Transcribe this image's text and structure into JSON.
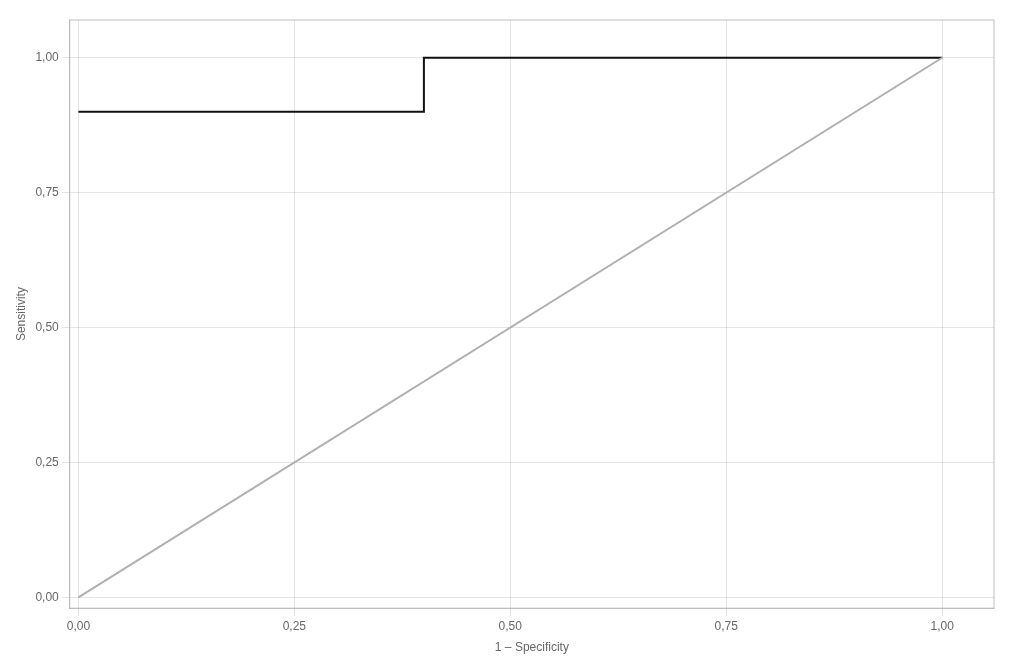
{
  "chart_data": {
    "type": "line",
    "xlabel": "1 – Specificity",
    "ylabel": "Sensitivity",
    "series": [
      {
        "color": "#b0b0b0",
        "x": [
          0.0,
          1.0
        ],
        "values": [
          0.0,
          1.0
        ]
      },
      {
        "color": "#111111",
        "x": [
          0.0,
          0.0,
          0.4,
          0.4,
          1.0
        ],
        "values": [
          0.9,
          0.9,
          0.9,
          1.0,
          1.0
        ]
      }
    ],
    "xlim": [
      -0.01,
      1.06
    ],
    "ylim": [
      -0.02,
      1.07
    ],
    "xticks": [
      {
        "value": 0.0,
        "label": "0,00"
      },
      {
        "value": 0.25,
        "label": "0,25"
      },
      {
        "value": 0.5,
        "label": "0,50"
      },
      {
        "value": 0.75,
        "label": "0,75"
      },
      {
        "value": 1.0,
        "label": "1,00"
      }
    ],
    "yticks": [
      {
        "value": 0.0,
        "label": "0,00"
      },
      {
        "value": 0.25,
        "label": "0,25"
      },
      {
        "value": 0.5,
        "label": "0,50"
      },
      {
        "value": 0.75,
        "label": "0,75"
      },
      {
        "value": 1.0,
        "label": "1,00"
      }
    ],
    "grid": true
  }
}
